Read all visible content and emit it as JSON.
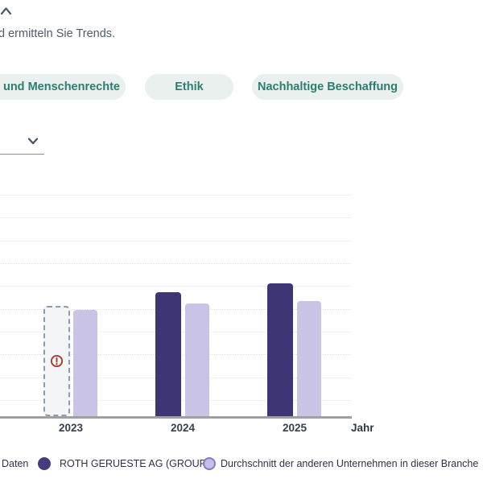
{
  "header": {
    "intro_text": "d ermitteln Sie Trends."
  },
  "topic_pills": [
    {
      "label": "- und Menschenrechte"
    },
    {
      "label": "Ethik"
    },
    {
      "label": "Nachhaltige Beschaffung"
    }
  ],
  "chart_data": {
    "type": "bar",
    "title": "",
    "categories": [
      "2023",
      "2024",
      "2025"
    ],
    "series": [
      {
        "name": "ROTH GERUESTE AG (GROUP)",
        "color": "#3d3574",
        "values": [
          null,
          56,
          60
        ]
      },
      {
        "name": "Durchschnitt der anderen Unternehmen in dieser Branche",
        "color": "#c9c3e5",
        "values": [
          48,
          51,
          52
        ]
      }
    ],
    "missing_data": {
      "category": "2023",
      "series": "ROTH GERUESTE AG (GROUP)",
      "placeholder_value": 50,
      "marker": "warning-icon"
    },
    "xlabel": "Jahr",
    "ylabel": "",
    "ylim": [
      0,
      100
    ],
    "gridline_count": 10,
    "grid": true,
    "legend_position": "bottom"
  },
  "legend": {
    "items": [
      {
        "label": "Daten"
      },
      {
        "label": "ROTH GERUESTE AG (GROUP)",
        "swatch_color": "#453c80"
      },
      {
        "label": "Durchschnitt der anderen Unternehmen in dieser Branche",
        "swatch_color": "#c5bee6",
        "swatch_border": "#847bc4"
      }
    ]
  },
  "colors": {
    "pill_bg": "#e9f0ed",
    "pill_text": "#2b7d71",
    "bar_primary": "#3d3574",
    "bar_secondary": "#c9c3e5",
    "warning": "#a93b2d",
    "axis": "#a0a0a3",
    "gridline": "#e4e4e8",
    "missing_box_border": "#8b9cb0",
    "missing_box_bg": "#f4f5f7"
  }
}
